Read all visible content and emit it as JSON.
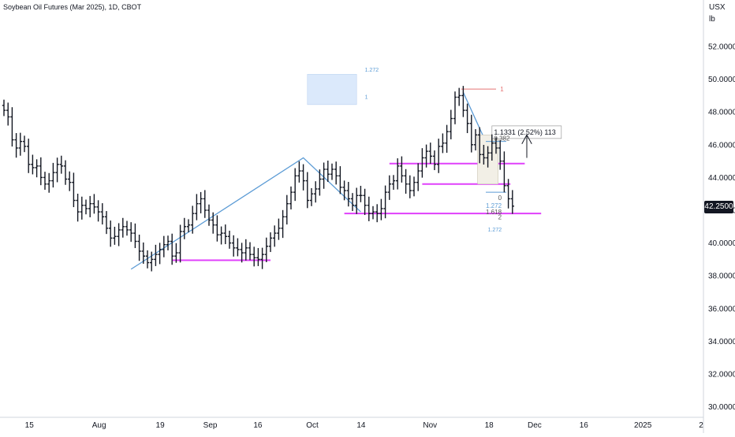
{
  "header": {
    "title": "Soybean Oil Futures (Mar 2025), 1D, CBOT",
    "currency": "USX",
    "unit": "lb"
  },
  "price_tag": "42.2500",
  "annotations": {
    "fib_top_label": "1",
    "measure_label": "1.1331 (2.52%) 113",
    "fib_0382": "0.382",
    "fib_0": "0",
    "fib_1272_a": "1.272",
    "fib_1618": "1.618",
    "fib_2": "2",
    "fib_1272_b": "1.272",
    "box_1272": "1.272",
    "box_1": "1"
  },
  "colors": {
    "bars": "#131722",
    "magenta": "#e040fb",
    "trend_blue": "#5b9bd5",
    "fib_red": "#e57373",
    "box_fill": "#dbe9fb"
  },
  "chart_data": {
    "type": "ohlc",
    "title": "Soybean Oil Futures (Mar 2025), 1D, CBOT",
    "y_ticks": [
      "52.0000",
      "50.0000",
      "48.0000",
      "46.0000",
      "44.0000",
      "42.0000",
      "40.0000",
      "38.0000",
      "36.0000",
      "34.0000",
      "32.0000",
      "30.0000"
    ],
    "x_ticks": [
      "15",
      "Aug",
      "19",
      "Sep",
      "16",
      "Oct",
      "14",
      "Nov",
      "18",
      "Dec",
      "16",
      "2025",
      "2"
    ],
    "ylim": [
      29.8,
      53.6
    ],
    "grid": false,
    "closes": [
      48.1,
      47.7,
      46.3,
      45.8,
      46.2,
      45.9,
      44.8,
      44.6,
      44.7,
      44.0,
      43.6,
      43.8,
      44.3,
      44.8,
      44.7,
      43.9,
      43.7,
      42.6,
      41.9,
      42.3,
      42.1,
      42.4,
      42.2,
      41.9,
      41.6,
      40.9,
      40.3,
      40.4,
      40.8,
      41.0,
      40.8,
      40.6,
      40.1,
      39.5,
      39.2,
      38.8,
      39.0,
      39.3,
      39.6,
      39.9,
      40.1,
      39.2,
      39.4,
      40.7,
      41.0,
      41.1,
      41.8,
      42.4,
      42.7,
      42.0,
      41.4,
      41.1,
      40.5,
      40.6,
      40.4,
      40.0,
      39.7,
      39.6,
      39.4,
      39.7,
      39.3,
      39.1,
      39.0,
      39.3,
      39.8,
      40.3,
      40.6,
      40.9,
      41.6,
      42.4,
      43.1,
      44.1,
      44.4,
      43.8,
      42.6,
      43.0,
      43.3,
      43.9,
      44.5,
      44.2,
      44.5,
      44.1,
      43.4,
      43.2,
      42.7,
      42.3,
      42.9,
      42.9,
      42.3,
      41.8,
      41.9,
      41.8,
      42.1,
      43.1,
      43.6,
      43.8,
      44.7,
      44.1,
      43.6,
      43.2,
      43.7,
      44.4,
      45.2,
      45.6,
      45.3,
      44.8,
      45.9,
      46.1,
      46.8,
      47.6,
      48.9,
      49.0,
      48.1,
      47.3,
      46.0,
      46.6,
      45.4,
      45.2,
      45.5,
      46.1,
      45.8,
      45.0,
      43.5,
      42.7,
      42.25
    ]
  }
}
